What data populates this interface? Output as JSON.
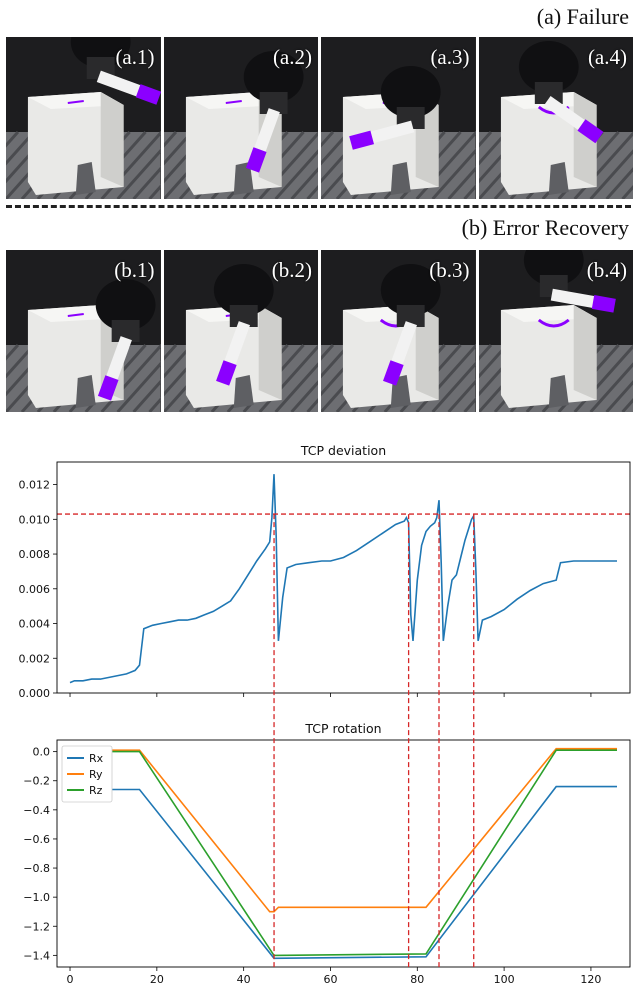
{
  "panel_a": {
    "title": "(a) Failure",
    "frames": [
      "(a.1)",
      "(a.2)",
      "(a.3)",
      "(a.4)"
    ]
  },
  "panel_b": {
    "title": "(b) Error Recovery",
    "frames": [
      "(b.1)",
      "(b.2)",
      "(b.3)",
      "(b.4)"
    ]
  },
  "colors": {
    "rx": "#1f77b4",
    "ry": "#ff7f0e",
    "rz": "#2ca02c",
    "threshold": "#d62728",
    "marker": "#8b00ff"
  },
  "chart_data": [
    {
      "type": "line",
      "title": "TCP deviation",
      "xlim": [
        -3,
        129
      ],
      "ylim": [
        0,
        0.0133
      ],
      "xticks": [
        0,
        20,
        40,
        60,
        80,
        100,
        120
      ],
      "yticks": [
        0.0,
        0.002,
        0.004,
        0.006,
        0.008,
        0.01,
        0.012
      ],
      "ytick_labels": [
        "0.000",
        "0.002",
        "0.004",
        "0.006",
        "0.008",
        "0.010",
        "0.012"
      ],
      "threshold": 0.0103,
      "vlines": [
        47,
        78,
        85,
        93
      ],
      "series": [
        {
          "color": "#1f77b4",
          "x": [
            0,
            1,
            3,
            5,
            7,
            9,
            11,
            13,
            15,
            16,
            17,
            19,
            21,
            23,
            25,
            27,
            29,
            31,
            33,
            35,
            37,
            39,
            41,
            43,
            45,
            46,
            46.5,
            47,
            47.5,
            48,
            49,
            50,
            52,
            55,
            58,
            60,
            63,
            66,
            69,
            72,
            75,
            77,
            77.5,
            78,
            78.5,
            79,
            80,
            81,
            82,
            83,
            84,
            84.5,
            85,
            85.5,
            86,
            87,
            88,
            89,
            90,
            91,
            92,
            92.5,
            93,
            93.5,
            94,
            95,
            97,
            100,
            103,
            106,
            109,
            112,
            113,
            116,
            119,
            122,
            125,
            126
          ],
          "y": [
            0.0006,
            0.0007,
            0.0007,
            0.0008,
            0.0008,
            0.0009,
            0.001,
            0.0011,
            0.0013,
            0.0016,
            0.0037,
            0.0039,
            0.004,
            0.0041,
            0.0042,
            0.0042,
            0.0043,
            0.0045,
            0.0047,
            0.005,
            0.0053,
            0.006,
            0.0068,
            0.0076,
            0.0083,
            0.0087,
            0.0101,
            0.0126,
            0.009,
            0.003,
            0.0055,
            0.0072,
            0.0074,
            0.0075,
            0.0076,
            0.0076,
            0.0078,
            0.0082,
            0.0087,
            0.0092,
            0.0097,
            0.0099,
            0.0101,
            0.0098,
            0.0045,
            0.003,
            0.0065,
            0.0085,
            0.0093,
            0.0096,
            0.0098,
            0.0101,
            0.0111,
            0.0075,
            0.003,
            0.005,
            0.0065,
            0.0068,
            0.0078,
            0.0088,
            0.0096,
            0.01,
            0.0102,
            0.007,
            0.003,
            0.0042,
            0.0044,
            0.0048,
            0.0054,
            0.0059,
            0.0063,
            0.0065,
            0.0075,
            0.0076,
            0.0076,
            0.0076,
            0.0076,
            0.0076
          ]
        }
      ]
    },
    {
      "type": "line",
      "title": "TCP rotation",
      "xlim": [
        -3,
        129
      ],
      "ylim": [
        -1.48,
        0.08
      ],
      "xticks": [
        0,
        20,
        40,
        60,
        80,
        100,
        120
      ],
      "xtick_labels": [
        "0",
        "20",
        "40",
        "60",
        "80",
        "100",
        "120"
      ],
      "yticks": [
        0.0,
        -0.2,
        -0.4,
        -0.6,
        -0.8,
        -1.0,
        -1.2,
        -1.4
      ],
      "ytick_labels": [
        "0.0",
        "−0.2",
        "−0.4",
        "−0.6",
        "−0.8",
        "−1.0",
        "−1.2",
        "−1.4"
      ],
      "vlines": [
        47,
        78,
        85,
        93
      ],
      "legend_position": "top-left",
      "series": [
        {
          "name": "Rx",
          "color": "#1f77b4",
          "x": [
            0,
            16,
            47,
            82,
            112,
            126
          ],
          "y": [
            -0.26,
            -0.26,
            -1.42,
            -1.41,
            -0.24,
            -0.24
          ]
        },
        {
          "name": "Ry",
          "color": "#ff7f0e",
          "x": [
            0,
            16,
            46,
            47,
            48,
            82,
            112,
            126
          ],
          "y": [
            0.01,
            0.01,
            -1.1,
            -1.1,
            -1.07,
            -1.07,
            0.02,
            0.02
          ]
        },
        {
          "name": "Rz",
          "color": "#2ca02c",
          "x": [
            0,
            16,
            47,
            82,
            112,
            126
          ],
          "y": [
            0.0,
            0.0,
            -1.4,
            -1.39,
            0.01,
            0.01
          ]
        }
      ]
    }
  ]
}
